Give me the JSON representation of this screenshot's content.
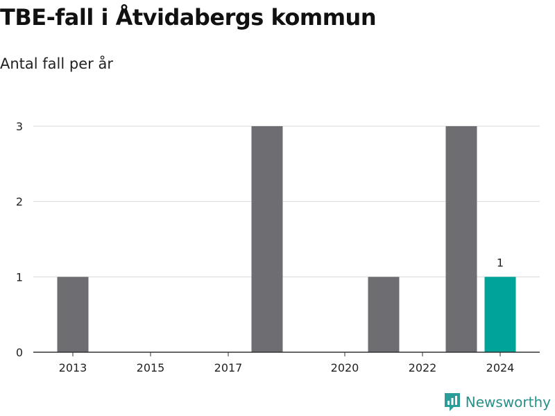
{
  "title": "TBE-fall i Åtvidabergs kommun",
  "subtitle": "Antal fall per år",
  "brand": {
    "name": "Newsworthy",
    "icon": "newsworthy-logo-icon",
    "color": "#2a9d98"
  },
  "colors": {
    "bar": "#6e6d72",
    "highlight": "#00a398",
    "grid": "#d9d9d9",
    "axis": "#333333"
  },
  "chart_data": {
    "type": "bar",
    "title": "TBE-fall i Åtvidabergs kommun",
    "subtitle": "Antal fall per år",
    "xlabel": "",
    "ylabel": "",
    "categories": [
      "2013",
      "2014",
      "2015",
      "2016",
      "2017",
      "2018",
      "2019",
      "2020",
      "2021",
      "2022",
      "2023",
      "2024"
    ],
    "values": [
      1,
      0,
      0,
      0,
      0,
      3,
      0,
      0,
      1,
      0,
      3,
      1
    ],
    "highlight_index": 11,
    "data_labels": [
      {
        "index": 11,
        "text": "1"
      }
    ],
    "x_tick_labels": [
      "2013",
      "2015",
      "2017",
      "2020",
      "2022",
      "2024"
    ],
    "y_ticks": [
      0,
      1,
      2,
      3
    ],
    "ylim": [
      0,
      3
    ],
    "grid": true,
    "legend": "none"
  }
}
